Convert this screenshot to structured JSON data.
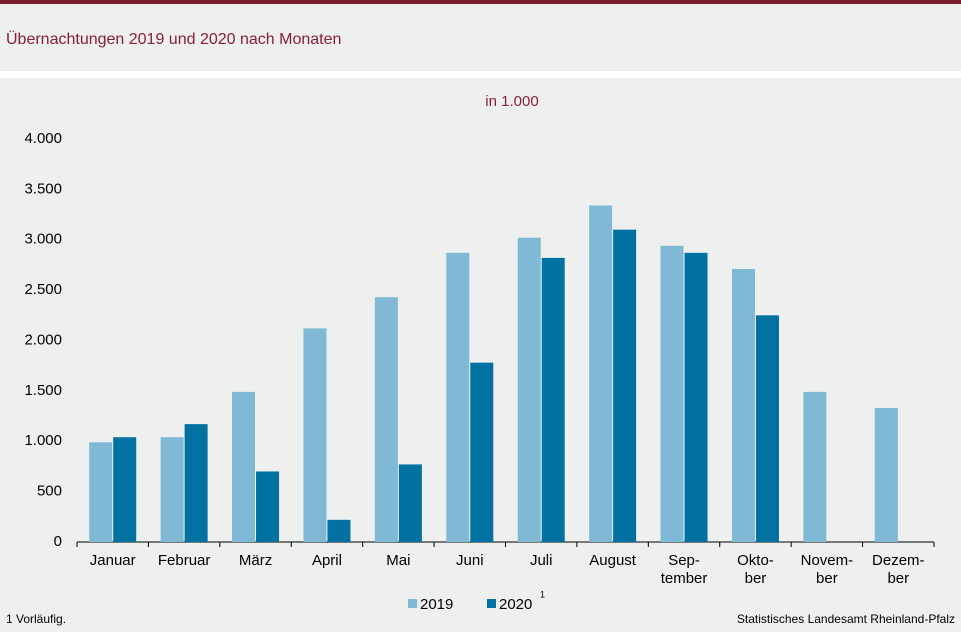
{
  "chart_data": {
    "type": "bar",
    "title": "Übernachtungen  2019 und 2020 nach Monaten",
    "subtitle": "in 1.000",
    "categories": [
      "Januar",
      "Februar",
      "März",
      "April",
      "Mai",
      "Juni",
      "Juli",
      "August",
      "Sep-\ntember",
      "Okto-\nber",
      "Novem-\nber",
      "Dezem-\nber"
    ],
    "series": [
      {
        "name": "2019",
        "color": "#80b9d5",
        "values": [
          990,
          1040,
          1490,
          2120,
          2430,
          2870,
          3020,
          3340,
          2940,
          2710,
          1490,
          1330
        ]
      },
      {
        "name": "2020",
        "color": "#0071a1",
        "values": [
          1040,
          1170,
          700,
          220,
          770,
          1780,
          2820,
          3100,
          2870,
          2250,
          null,
          null
        ]
      }
    ],
    "legend_note_marker": "1",
    "ylim": [
      0,
      4000
    ],
    "yticks": [
      0,
      500,
      {
        "value": 1000,
        "label": "1.000"
      },
      {
        "value": 1500,
        "label": "1.500"
      },
      {
        "value": 2000,
        "label": "2.000"
      },
      {
        "value": 2500,
        "label": "2.500"
      },
      {
        "value": 3000,
        "label": "3.000"
      },
      {
        "value": 3500,
        "label": "3.500"
      },
      {
        "value": 4000,
        "label": "4.000"
      }
    ],
    "grid": false,
    "footnote": "1 Vorläufig.",
    "source": "Statistisches Landesamt Rheinland-Pfalz"
  }
}
